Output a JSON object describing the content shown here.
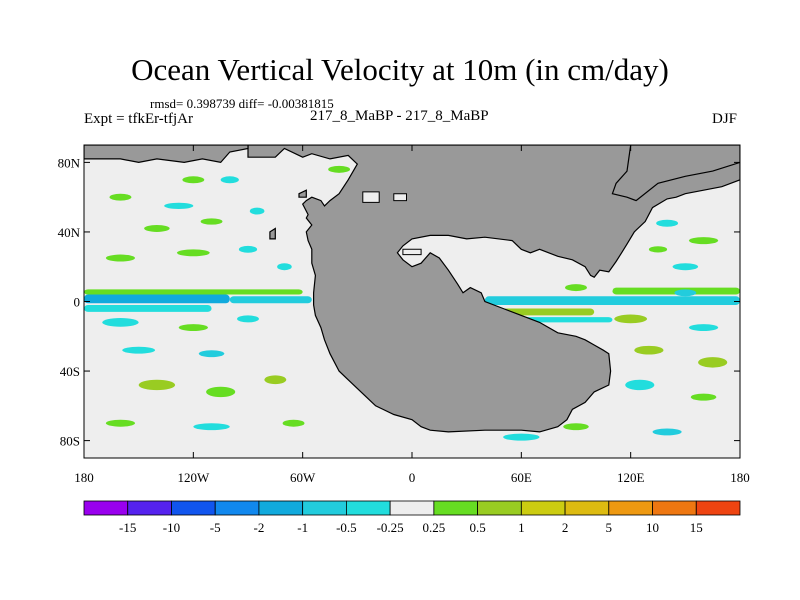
{
  "title": "Ocean Vertical Velocity at 10m (in cm/day)",
  "stats": "rmsd= 0.398739 diff= -0.00381815",
  "expt": "Expt = tfkEr-tfjAr",
  "case_diff": "217_8_MaBP - 217_8_MaBP",
  "season": "DJF",
  "chart_data": {
    "type": "heatmap",
    "title": "Ocean Vertical Velocity at 10m (in cm/day)",
    "x_range": [
      -180,
      180
    ],
    "y_range": [
      -90,
      90
    ],
    "x_ticks": [
      {
        "value": -180,
        "label": "180"
      },
      {
        "value": -120,
        "label": "120W"
      },
      {
        "value": -60,
        "label": "60W"
      },
      {
        "value": 0,
        "label": "0"
      },
      {
        "value": 60,
        "label": "60E"
      },
      {
        "value": 120,
        "label": "120E"
      },
      {
        "value": 180,
        "label": "180"
      }
    ],
    "y_ticks": [
      {
        "value": 80,
        "label": "80N"
      },
      {
        "value": 40,
        "label": "40N"
      },
      {
        "value": 0,
        "label": "0"
      },
      {
        "value": -40,
        "label": "40S"
      },
      {
        "value": -80,
        "label": "80S"
      }
    ],
    "colorbar": {
      "colors": [
        "#9900ee",
        "#5522ee",
        "#1155ee",
        "#1188ee",
        "#11aadd",
        "#22ccdd",
        "#22dddd",
        "#eeeeee",
        "#66dd22",
        "#99cc22",
        "#cccc11",
        "#ddbb11",
        "#ee9911",
        "#ee7711",
        "#ee4411"
      ],
      "labels": [
        "-15",
        "-10",
        "-5",
        "-2",
        "-1",
        "-0.5",
        "-0.25",
        "0.25",
        "0.5",
        "1",
        "2",
        "5",
        "10",
        "15"
      ]
    },
    "land_color": "#999999",
    "ocean_background": "#eeeeee",
    "land": [
      [
        [
          -90,
          90
        ],
        [
          -90,
          83
        ],
        [
          -75,
          83
        ],
        [
          -70,
          88
        ],
        [
          -60,
          83
        ],
        [
          -55,
          85
        ],
        [
          -45,
          82
        ],
        [
          -35,
          84
        ],
        [
          -30,
          79
        ],
        [
          -35,
          70
        ],
        [
          -40,
          62
        ],
        [
          -45,
          58
        ],
        [
          -48,
          55
        ],
        [
          -50,
          58
        ],
        [
          -55,
          60
        ],
        [
          -58,
          58
        ],
        [
          -60,
          56
        ],
        [
          -57,
          50
        ],
        [
          -58,
          48
        ],
        [
          -55,
          44
        ],
        [
          -58,
          40
        ],
        [
          -57,
          35
        ],
        [
          -55,
          30
        ],
        [
          -55,
          22
        ],
        [
          -53,
          15
        ],
        [
          -54,
          5
        ],
        [
          -54,
          -2
        ],
        [
          -53,
          -8
        ],
        [
          -50,
          -15
        ],
        [
          -48,
          -22
        ],
        [
          -45,
          -30
        ],
        [
          -40,
          -40
        ],
        [
          -35,
          -45
        ],
        [
          -30,
          -50
        ],
        [
          -25,
          -55
        ],
        [
          -20,
          -60
        ],
        [
          -10,
          -65
        ],
        [
          0,
          -68
        ],
        [
          5,
          -72
        ],
        [
          10,
          -74
        ],
        [
          20,
          -75
        ],
        [
          40,
          -74
        ],
        [
          60,
          -74
        ],
        [
          70,
          -75
        ],
        [
          80,
          -72
        ],
        [
          85,
          -68
        ],
        [
          88,
          -62
        ],
        [
          95,
          -58
        ],
        [
          100,
          -52
        ],
        [
          108,
          -48
        ],
        [
          109,
          -40
        ],
        [
          108,
          -30
        ],
        [
          105,
          -28
        ],
        [
          100,
          -25
        ],
        [
          95,
          -22
        ],
        [
          90,
          -20
        ],
        [
          80,
          -18
        ],
        [
          70,
          -12
        ],
        [
          60,
          -8
        ],
        [
          50,
          -4
        ],
        [
          40,
          0
        ],
        [
          38,
          5
        ],
        [
          32,
          8
        ],
        [
          28,
          5
        ],
        [
          25,
          10
        ],
        [
          20,
          18
        ],
        [
          15,
          25
        ],
        [
          10,
          28
        ],
        [
          5,
          22
        ],
        [
          0,
          20
        ],
        [
          -5,
          24
        ],
        [
          -8,
          28
        ],
        [
          -5,
          32
        ],
        [
          0,
          36
        ],
        [
          10,
          38
        ],
        [
          20,
          38
        ],
        [
          30,
          36
        ],
        [
          40,
          37
        ],
        [
          55,
          35
        ],
        [
          60,
          30
        ],
        [
          65,
          28
        ],
        [
          70,
          30
        ],
        [
          75,
          28
        ],
        [
          80,
          26
        ],
        [
          88,
          24
        ],
        [
          95,
          20
        ],
        [
          98,
          15
        ],
        [
          100,
          14
        ],
        [
          103,
          18
        ],
        [
          108,
          17
        ],
        [
          112,
          23
        ],
        [
          115,
          28
        ],
        [
          118,
          33
        ],
        [
          122,
          40
        ],
        [
          128,
          46
        ],
        [
          132,
          54
        ],
        [
          140,
          59
        ],
        [
          145,
          60
        ],
        [
          150,
          62
        ],
        [
          160,
          64
        ],
        [
          170,
          66
        ],
        [
          180,
          70
        ],
        [
          180,
          90
        ]
      ],
      [
        [
          -180,
          90
        ],
        [
          -180,
          82
        ],
        [
          -160,
          82
        ],
        [
          -150,
          80
        ],
        [
          -140,
          82
        ],
        [
          -125,
          80
        ],
        [
          -115,
          82
        ],
        [
          -105,
          80
        ],
        [
          -100,
          86
        ],
        [
          -90,
          88
        ],
        [
          -90,
          90
        ]
      ],
      [
        [
          123,
          58
        ],
        [
          135,
          68
        ],
        [
          150,
          72
        ],
        [
          165,
          75
        ],
        [
          180,
          80
        ],
        [
          180,
          90
        ],
        [
          120,
          90
        ],
        [
          118,
          75
        ],
        [
          112,
          68
        ],
        [
          110,
          62
        ],
        [
          118,
          60
        ]
      ],
      [
        [
          -62,
          62
        ],
        [
          -58,
          64
        ],
        [
          -58,
          60
        ],
        [
          -62,
          60
        ]
      ],
      [
        [
          -78,
          40
        ],
        [
          -75,
          42
        ],
        [
          -75,
          36
        ],
        [
          -78,
          36
        ]
      ]
    ],
    "land_holes": [
      [
        [
          -27,
          63
        ],
        [
          -18,
          63
        ],
        [
          -18,
          57
        ],
        [
          -27,
          57
        ]
      ],
      [
        [
          -10,
          62
        ],
        [
          -3,
          62
        ],
        [
          -3,
          58
        ],
        [
          -10,
          58
        ]
      ],
      [
        [
          -5,
          30
        ],
        [
          5,
          30
        ],
        [
          5,
          27
        ],
        [
          -5,
          27
        ]
      ]
    ],
    "bands": [
      {
        "lon": [
          -180,
          -100
        ],
        "lat": [
          -1,
          4
        ],
        "color": "#11aadd"
      },
      {
        "lon": [
          -100,
          -55
        ],
        "lat": [
          -1,
          3
        ],
        "color": "#22ccdd"
      },
      {
        "lon": [
          -180,
          -60
        ],
        "lat": [
          4,
          7
        ],
        "color": "#66dd22"
      },
      {
        "lon": [
          -180,
          -110
        ],
        "lat": [
          -6,
          -2
        ],
        "color": "#22dddd"
      },
      {
        "lon": [
          40,
          180
        ],
        "lat": [
          -2,
          3
        ],
        "color": "#22ccdd"
      },
      {
        "lon": [
          45,
          100
        ],
        "lat": [
          -8,
          -4
        ],
        "color": "#99cc22"
      },
      {
        "lon": [
          60,
          110
        ],
        "lat": [
          -12,
          -9
        ],
        "color": "#22dddd"
      },
      {
        "lon": [
          110,
          180
        ],
        "lat": [
          4,
          8
        ],
        "color": "#66dd22"
      }
    ],
    "blobs": [
      {
        "lon": -160,
        "lat": 60,
        "rx": 6,
        "ry": 2,
        "color": "#66dd22"
      },
      {
        "lon": -128,
        "lat": 55,
        "rx": 8,
        "ry": 1.8,
        "color": "#22dddd"
      },
      {
        "lon": -100,
        "lat": 70,
        "rx": 5,
        "ry": 2,
        "color": "#22dddd"
      },
      {
        "lon": -85,
        "lat": 52,
        "rx": 4,
        "ry": 2,
        "color": "#22dddd"
      },
      {
        "lon": -140,
        "lat": 42,
        "rx": 7,
        "ry": 2,
        "color": "#66dd22"
      },
      {
        "lon": -110,
        "lat": 46,
        "rx": 6,
        "ry": 1.8,
        "color": "#66dd22"
      },
      {
        "lon": -160,
        "lat": 25,
        "rx": 8,
        "ry": 2,
        "color": "#66dd22"
      },
      {
        "lon": -120,
        "lat": 28,
        "rx": 9,
        "ry": 2,
        "color": "#66dd22"
      },
      {
        "lon": -90,
        "lat": 30,
        "rx": 5,
        "ry": 2,
        "color": "#22dddd"
      },
      {
        "lon": -70,
        "lat": 20,
        "rx": 4,
        "ry": 2,
        "color": "#22dddd"
      },
      {
        "lon": -160,
        "lat": -12,
        "rx": 10,
        "ry": 2.5,
        "color": "#22dddd"
      },
      {
        "lon": -120,
        "lat": -15,
        "rx": 8,
        "ry": 2,
        "color": "#66dd22"
      },
      {
        "lon": -90,
        "lat": -10,
        "rx": 6,
        "ry": 2,
        "color": "#22dddd"
      },
      {
        "lon": -150,
        "lat": -28,
        "rx": 9,
        "ry": 2,
        "color": "#22dddd"
      },
      {
        "lon": -110,
        "lat": -30,
        "rx": 7,
        "ry": 2,
        "color": "#22ccdd"
      },
      {
        "lon": -140,
        "lat": -48,
        "rx": 10,
        "ry": 3,
        "color": "#99cc22"
      },
      {
        "lon": -105,
        "lat": -52,
        "rx": 8,
        "ry": 3,
        "color": "#66dd22"
      },
      {
        "lon": -75,
        "lat": -45,
        "rx": 6,
        "ry": 2.5,
        "color": "#99cc22"
      },
      {
        "lon": -160,
        "lat": -70,
        "rx": 8,
        "ry": 2,
        "color": "#66dd22"
      },
      {
        "lon": -110,
        "lat": -72,
        "rx": 10,
        "ry": 2,
        "color": "#22dddd"
      },
      {
        "lon": -65,
        "lat": -70,
        "rx": 6,
        "ry": 2,
        "color": "#66dd22"
      },
      {
        "lon": -120,
        "lat": 70,
        "rx": 6,
        "ry": 2,
        "color": "#66dd22"
      },
      {
        "lon": -40,
        "lat": 76,
        "rx": 6,
        "ry": 2,
        "color": "#66dd22"
      },
      {
        "lon": 20,
        "lat": 48,
        "rx": 6,
        "ry": 2,
        "color": "#66dd22"
      },
      {
        "lon": 35,
        "lat": 43,
        "rx": 5,
        "ry": 1.5,
        "color": "#22dddd"
      },
      {
        "lon": 70,
        "lat": 32,
        "rx": 5,
        "ry": 1.5,
        "color": "#66dd22"
      },
      {
        "lon": 140,
        "lat": 45,
        "rx": 6,
        "ry": 2,
        "color": "#22dddd"
      },
      {
        "lon": 160,
        "lat": 35,
        "rx": 8,
        "ry": 2,
        "color": "#66dd22"
      },
      {
        "lon": 135,
        "lat": 30,
        "rx": 5,
        "ry": 1.8,
        "color": "#66dd22"
      },
      {
        "lon": 150,
        "lat": 20,
        "rx": 7,
        "ry": 2,
        "color": "#22dddd"
      },
      {
        "lon": 90,
        "lat": 8,
        "rx": 6,
        "ry": 2,
        "color": "#66dd22"
      },
      {
        "lon": 120,
        "lat": -10,
        "rx": 9,
        "ry": 2.5,
        "color": "#99cc22"
      },
      {
        "lon": 160,
        "lat": -15,
        "rx": 8,
        "ry": 2,
        "color": "#22dddd"
      },
      {
        "lon": 130,
        "lat": -28,
        "rx": 8,
        "ry": 2.5,
        "color": "#99cc22"
      },
      {
        "lon": 165,
        "lat": -35,
        "rx": 8,
        "ry": 3,
        "color": "#99cc22"
      },
      {
        "lon": 125,
        "lat": -48,
        "rx": 8,
        "ry": 3,
        "color": "#22dddd"
      },
      {
        "lon": 160,
        "lat": -55,
        "rx": 7,
        "ry": 2,
        "color": "#66dd22"
      },
      {
        "lon": 90,
        "lat": -72,
        "rx": 7,
        "ry": 2,
        "color": "#66dd22"
      },
      {
        "lon": 60,
        "lat": -78,
        "rx": 10,
        "ry": 2,
        "color": "#22dddd"
      },
      {
        "lon": 140,
        "lat": -75,
        "rx": 8,
        "ry": 2,
        "color": "#22ccdd"
      },
      {
        "lon": 90,
        "lat": -40,
        "rx": 6,
        "ry": 2,
        "color": "#22dddd"
      },
      {
        "lon": 150,
        "lat": 5,
        "rx": 6,
        "ry": 2,
        "color": "#22ccdd"
      },
      {
        "lon": 80,
        "lat": 58,
        "rx": 8,
        "ry": 2,
        "color": "#66dd22"
      },
      {
        "lon": 30,
        "lat": 75,
        "rx": 8,
        "ry": 2,
        "color": "#22dddd"
      },
      {
        "lon": -10,
        "lat": 70,
        "rx": 6,
        "ry": 2,
        "color": "#66dd22"
      }
    ]
  }
}
